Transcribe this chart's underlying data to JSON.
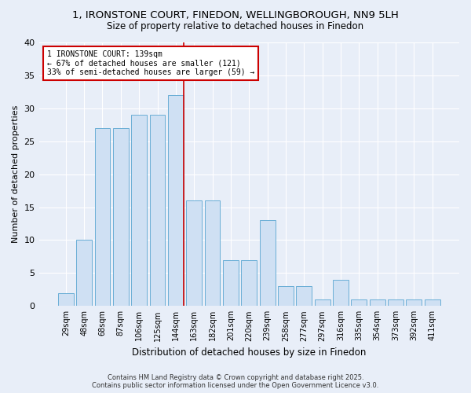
{
  "title": "1, IRONSTONE COURT, FINEDON, WELLINGBOROUGH, NN9 5LH",
  "subtitle": "Size of property relative to detached houses in Finedon",
  "xlabel": "Distribution of detached houses by size in Finedon",
  "ylabel": "Number of detached properties",
  "categories": [
    "29sqm",
    "48sqm",
    "68sqm",
    "87sqm",
    "106sqm",
    "125sqm",
    "144sqm",
    "163sqm",
    "182sqm",
    "201sqm",
    "220sqm",
    "239sqm",
    "258sqm",
    "277sqm",
    "297sqm",
    "316sqm",
    "335sqm",
    "354sqm",
    "373sqm",
    "392sqm",
    "411sqm"
  ],
  "values": [
    2,
    10,
    27,
    27,
    29,
    29,
    32,
    16,
    16,
    7,
    7,
    13,
    3,
    3,
    1,
    4,
    1,
    1,
    1,
    1,
    1
  ],
  "bar_color": "#cfe0f3",
  "bar_edgecolor": "#6aaed6",
  "vline_color": "#cc0000",
  "vline_position": 6.45,
  "annotation_text": "1 IRONSTONE COURT: 139sqm\n← 67% of detached houses are smaller (121)\n33% of semi-detached houses are larger (59) →",
  "annotation_box_color": "#ffffff",
  "annotation_box_edgecolor": "#cc0000",
  "ylim": [
    0,
    40
  ],
  "yticks": [
    0,
    5,
    10,
    15,
    20,
    25,
    30,
    35,
    40
  ],
  "background_color": "#e8eef8",
  "grid_color": "#ffffff",
  "footer_line1": "Contains HM Land Registry data © Crown copyright and database right 2025.",
  "footer_line2": "Contains public sector information licensed under the Open Government Licence v3.0.",
  "title_fontsize": 9.5,
  "subtitle_fontsize": 8.5,
  "ylabel_fontsize": 8,
  "xlabel_fontsize": 8.5,
  "tick_fontsize": 7,
  "annot_fontsize": 7,
  "footer_fontsize": 6
}
